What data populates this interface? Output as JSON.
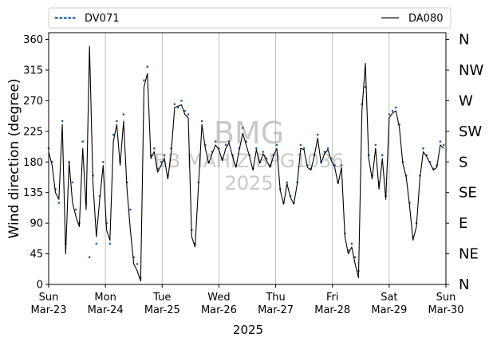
{
  "chart_data": {
    "type": "line",
    "ylabel": "Wind direction (degree)",
    "xlabel": "2025",
    "ylim": [
      0,
      370
    ],
    "xlim": [
      0,
      7
    ],
    "yticks": [
      0,
      45,
      90,
      135,
      180,
      225,
      270,
      315,
      360
    ],
    "compass": [
      {
        "value": 0,
        "label": "N"
      },
      {
        "value": 45,
        "label": "NE"
      },
      {
        "value": 90,
        "label": "E"
      },
      {
        "value": 135,
        "label": "SE"
      },
      {
        "value": 180,
        "label": "S"
      },
      {
        "value": 225,
        "label": "SW"
      },
      {
        "value": 270,
        "label": "W"
      },
      {
        "value": 315,
        "label": "NW"
      },
      {
        "value": 360,
        "label": "N"
      }
    ],
    "xticks": [
      {
        "x": 0,
        "day": "Sun",
        "date": "Mar-23"
      },
      {
        "x": 1,
        "day": "Mon",
        "date": "Mar-24"
      },
      {
        "x": 2,
        "day": "Tue",
        "date": "Mar-25"
      },
      {
        "x": 3,
        "day": "Wed",
        "date": "Mar-26"
      },
      {
        "x": 4,
        "day": "Thu",
        "date": "Mar-27"
      },
      {
        "x": 5,
        "day": "Fri",
        "date": "Mar-28"
      },
      {
        "x": 6,
        "day": "Sat",
        "date": "Mar-29"
      },
      {
        "x": 7,
        "day": "Sun",
        "date": "Mar-30"
      }
    ],
    "grid": "vertical",
    "legend_placement": "top",
    "watermark": [
      "BMG",
      "BB MAHIZ BPG1036",
      "2025"
    ],
    "series": [
      {
        "name": "DV071",
        "style": "dotted",
        "color": "#1f5fa8",
        "x": [
          0.0,
          0.06,
          0.12,
          0.18,
          0.24,
          0.3,
          0.36,
          0.42,
          0.48,
          0.54,
          0.6,
          0.66,
          0.72,
          0.78,
          0.84,
          0.9,
          0.96,
          1.02,
          1.08,
          1.14,
          1.2,
          1.26,
          1.32,
          1.38,
          1.44,
          1.5,
          1.56,
          1.62,
          1.68,
          1.74,
          1.8,
          1.86,
          1.92,
          1.98,
          2.04,
          2.1,
          2.16,
          2.22,
          2.28,
          2.34,
          2.4,
          2.46,
          2.52,
          2.58,
          2.64,
          2.7,
          2.76,
          2.82,
          2.88,
          2.94,
          3.0,
          3.06,
          3.12,
          3.18,
          3.24,
          3.3,
          3.36,
          3.42,
          3.48,
          3.54,
          3.6,
          3.66,
          3.72,
          3.78,
          3.84,
          3.9,
          3.96,
          4.02,
          4.08,
          4.14,
          4.2,
          4.26,
          4.32,
          4.38,
          4.44,
          4.5,
          4.56,
          4.62,
          4.68,
          4.74,
          4.8,
          4.86,
          4.92,
          4.98,
          5.04,
          5.1,
          5.16,
          5.22,
          5.28,
          5.34,
          5.4,
          5.46,
          5.52,
          5.58,
          5.64,
          5.7,
          5.76,
          5.82,
          5.88,
          5.94,
          6.0,
          6.06,
          6.12,
          6.18,
          6.24,
          6.3,
          6.36,
          6.42,
          6.48,
          6.54,
          6.6,
          6.66,
          6.72,
          6.78,
          6.84,
          6.9,
          6.96
        ],
        "y": [
          200,
          180,
          140,
          120,
          240,
          60,
          180,
          150,
          110,
          90,
          210,
          120,
          40,
          160,
          60,
          130,
          180,
          90,
          60,
          220,
          240,
          180,
          250,
          150,
          110,
          40,
          30,
          10,
          300,
          320,
          190,
          200,
          170,
          180,
          190,
          160,
          200,
          265,
          260,
          270,
          255,
          250,
          80,
          60,
          150,
          240,
          205,
          180,
          195,
          210,
          200,
          185,
          205,
          210,
          190,
          175,
          200,
          230,
          210,
          190,
          170,
          200,
          180,
          195,
          185,
          175,
          190,
          205,
          140,
          120,
          150,
          130,
          120,
          150,
          205,
          200,
          175,
          170,
          190,
          220,
          180,
          195,
          200,
          185,
          175,
          150,
          175,
          75,
          50,
          60,
          40,
          20,
          265,
          290,
          190,
          160,
          205,
          150,
          190,
          130,
          250,
          255,
          260,
          235,
          180,
          160,
          120,
          70,
          90,
          160,
          200,
          190,
          180,
          170,
          175,
          210,
          205
        ]
      },
      {
        "name": "DA080",
        "style": "solid",
        "color": "#000000",
        "x": [
          0.0,
          0.06,
          0.12,
          0.18,
          0.24,
          0.3,
          0.36,
          0.42,
          0.48,
          0.54,
          0.6,
          0.66,
          0.72,
          0.78,
          0.84,
          0.9,
          0.96,
          1.02,
          1.08,
          1.14,
          1.2,
          1.26,
          1.32,
          1.38,
          1.44,
          1.5,
          1.56,
          1.62,
          1.68,
          1.74,
          1.8,
          1.86,
          1.92,
          1.98,
          2.04,
          2.1,
          2.16,
          2.22,
          2.28,
          2.34,
          2.4,
          2.46,
          2.52,
          2.58,
          2.64,
          2.7,
          2.76,
          2.82,
          2.88,
          2.94,
          3.0,
          3.06,
          3.12,
          3.18,
          3.24,
          3.3,
          3.36,
          3.42,
          3.48,
          3.54,
          3.6,
          3.66,
          3.72,
          3.78,
          3.84,
          3.9,
          3.96,
          4.02,
          4.08,
          4.14,
          4.2,
          4.26,
          4.32,
          4.38,
          4.44,
          4.5,
          4.56,
          4.62,
          4.68,
          4.74,
          4.8,
          4.86,
          4.92,
          4.98,
          5.04,
          5.1,
          5.16,
          5.22,
          5.28,
          5.34,
          5.4,
          5.46,
          5.52,
          5.58,
          5.64,
          5.7,
          5.76,
          5.82,
          5.88,
          5.94,
          6.0,
          6.06,
          6.12,
          6.18,
          6.24,
          6.3,
          6.36,
          6.42,
          6.48,
          6.54,
          6.6,
          6.66,
          6.72,
          6.78,
          6.84,
          6.9,
          6.96
        ],
        "y": [
          195,
          175,
          135,
          125,
          235,
          45,
          180,
          120,
          100,
          85,
          200,
          110,
          350,
          150,
          70,
          125,
          175,
          80,
          65,
          210,
          235,
          175,
          240,
          140,
          80,
          30,
          20,
          5,
          290,
          310,
          185,
          195,
          165,
          175,
          185,
          155,
          195,
          260,
          262,
          264,
          250,
          245,
          70,
          55,
          145,
          235,
          200,
          178,
          192,
          205,
          198,
          182,
          200,
          208,
          188,
          172,
          198,
          222,
          205,
          188,
          168,
          198,
          178,
          192,
          182,
          172,
          188,
          200,
          138,
          118,
          148,
          128,
          118,
          148,
          200,
          198,
          172,
          168,
          188,
          215,
          178,
          192,
          198,
          182,
          172,
          148,
          172,
          70,
          45,
          55,
          30,
          10,
          255,
          325,
          185,
          155,
          200,
          140,
          185,
          125,
          245,
          252,
          255,
          230,
          178,
          158,
          115,
          65,
          85,
          155,
          195,
          188,
          178,
          168,
          172,
          205,
          200
        ]
      }
    ]
  }
}
